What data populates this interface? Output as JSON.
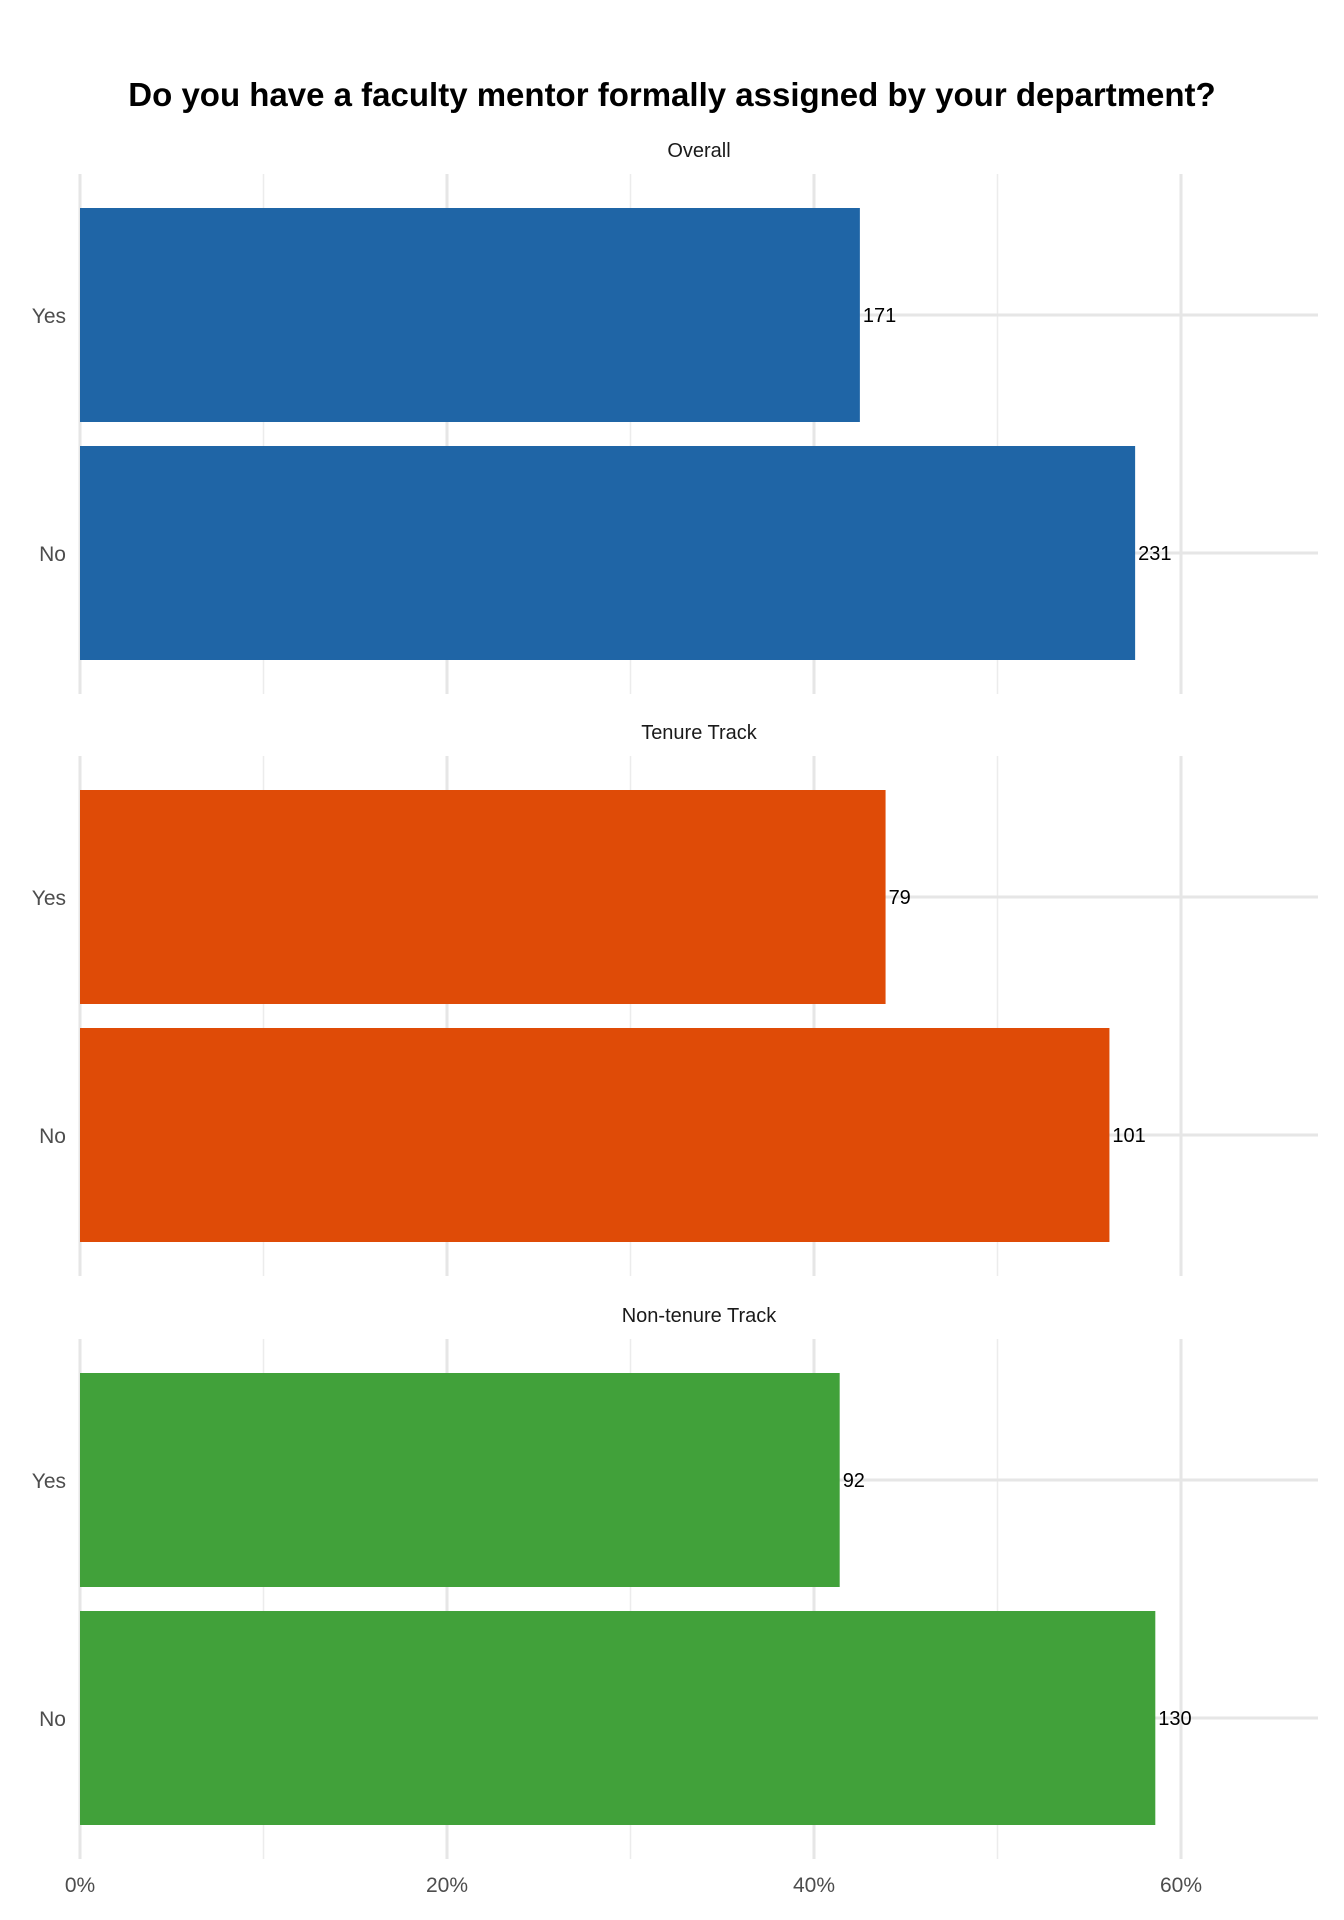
{
  "chart_data": {
    "type": "bar",
    "orientation": "horizontal",
    "title": "Do you have a faculty mentor formally assigned by your department?",
    "xlabel": "",
    "ylabel": "",
    "x_axis": {
      "range": [
        0,
        0.68
      ],
      "ticks": [
        0,
        0.2,
        0.4,
        0.6
      ],
      "tick_labels": [
        "0%",
        "20%",
        "40%",
        "60%"
      ],
      "format": "percent"
    },
    "grid": true,
    "legend": "none",
    "categories": [
      "Yes",
      "No"
    ],
    "panels": [
      {
        "facet": "Overall",
        "color": "#1f65a6",
        "values": [
          0.425,
          0.575
        ],
        "labels": [
          "171",
          "231"
        ]
      },
      {
        "facet": "Tenure Track",
        "color": "#df4b07",
        "values": [
          0.439,
          0.561
        ],
        "labels": [
          "79",
          "101"
        ]
      },
      {
        "facet": "Non-tenure Track",
        "color": "#41a13a",
        "values": [
          0.414,
          0.586
        ],
        "labels": [
          "92",
          "130"
        ]
      }
    ]
  }
}
